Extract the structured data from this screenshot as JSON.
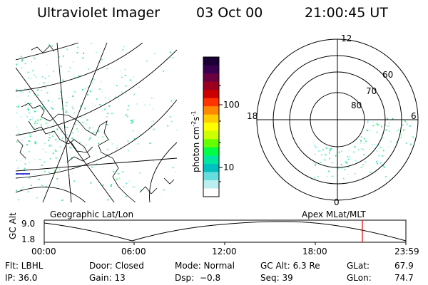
{
  "header": {
    "instrument": "Ultraviolet Imager",
    "date": "03 Oct 00",
    "time": "21:00:45 UT"
  },
  "colorbar": {
    "unit_label": "photon cm",
    "unit_exp1": "-2",
    "unit_mid": "s",
    "unit_exp2": "-1",
    "tick_100": "100",
    "tick_10": "10",
    "colors": [
      "#1a0033",
      "#3a0050",
      "#6a0040",
      "#9b0020",
      "#cc0000",
      "#ff3300",
      "#ff8800",
      "#ffcc00",
      "#ffff00",
      "#ccff00",
      "#66ff00",
      "#00ff44",
      "#00e8a0",
      "#00c0c0",
      "#66dddd",
      "#bbeeee",
      "#ffffff"
    ]
  },
  "polar_plot": {
    "mlt_labels": {
      "top": "12",
      "left": "18",
      "right": "6",
      "bottom": "0"
    },
    "lat_labels": [
      "60",
      "70",
      "80"
    ]
  },
  "timeline": {
    "ylabel": "GC Alt",
    "y_max": "9.0",
    "y_min": "1.8",
    "left_title": "Geographic Lat/Lon",
    "right_title": "Apex MLat/MLT",
    "ticks": [
      "00:00",
      "06:00",
      "12:00",
      "18:00",
      "23:59"
    ],
    "marker_color": "#e00000"
  },
  "footer": {
    "flt": "Flt: LBHL",
    "ip": "IP: 36.0",
    "door": "Door: Closed",
    "gain": "Gain: 13",
    "mode": "Mode: Normal",
    "dsp_label": "Dsp:",
    "dsp_value": "−0.8",
    "gcalt": "GC Alt: 6.3 Re",
    "seq": "Seq: 39",
    "glat_label": "GLat:",
    "glat_value": "67.9",
    "glon_label": "GLon:",
    "glon_value": "74.7"
  }
}
